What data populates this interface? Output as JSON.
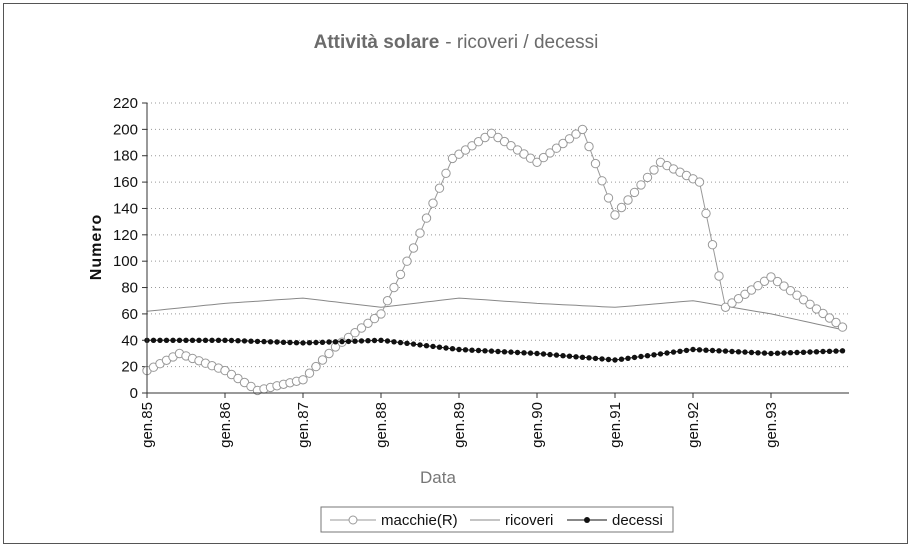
{
  "chart_data": {
    "type": "line",
    "title": "Attività solare",
    "subtitle": "- ricoveri / decessi",
    "xlabel": "Data",
    "ylabel": "Numero",
    "ylim": [
      0,
      220
    ],
    "yticks": [
      0,
      20,
      40,
      60,
      80,
      100,
      120,
      140,
      160,
      180,
      200,
      220
    ],
    "categories": [
      "gen.85",
      "gen.86",
      "gen.87",
      "gen.88",
      "gen.89",
      "gen.90",
      "gen.91",
      "gen.92",
      "gen.93"
    ],
    "grid": "horizontal dotted",
    "legend_position": "bottom",
    "series": [
      {
        "name": "macchie(R)",
        "color": "#999999",
        "marker": "open-circle",
        "key_values": [
          {
            "date": "1985-01",
            "value": 17
          },
          {
            "date": "1985-06",
            "value": 30
          },
          {
            "date": "1986-01",
            "value": 17
          },
          {
            "date": "1986-06",
            "value": 2
          },
          {
            "date": "1987-01",
            "value": 10
          },
          {
            "date": "1987-06",
            "value": 35
          },
          {
            "date": "1988-01",
            "value": 60
          },
          {
            "date": "1988-06",
            "value": 110
          },
          {
            "date": "1988-12",
            "value": 178
          },
          {
            "date": "1989-06",
            "value": 197
          },
          {
            "date": "1990-01",
            "value": 175
          },
          {
            "date": "1990-08",
            "value": 200
          },
          {
            "date": "1991-01",
            "value": 135
          },
          {
            "date": "1991-08",
            "value": 175
          },
          {
            "date": "1992-02",
            "value": 160
          },
          {
            "date": "1992-06",
            "value": 65
          },
          {
            "date": "1993-01",
            "value": 88
          },
          {
            "date": "1993-12",
            "value": 50
          }
        ]
      },
      {
        "name": "ricoveri",
        "color": "#888888",
        "marker": "none",
        "key_values": [
          {
            "date": "1985-01",
            "value": 62
          },
          {
            "date": "1986-01",
            "value": 68
          },
          {
            "date": "1987-01",
            "value": 72
          },
          {
            "date": "1988-01",
            "value": 65
          },
          {
            "date": "1989-01",
            "value": 72
          },
          {
            "date": "1990-01",
            "value": 68
          },
          {
            "date": "1991-01",
            "value": 65
          },
          {
            "date": "1992-01",
            "value": 70
          },
          {
            "date": "1993-01",
            "value": 60
          },
          {
            "date": "1993-12",
            "value": 48
          }
        ]
      },
      {
        "name": "decessi",
        "color": "#111111",
        "marker": "filled-circle",
        "key_values": [
          {
            "date": "1985-01",
            "value": 40
          },
          {
            "date": "1986-01",
            "value": 40
          },
          {
            "date": "1987-01",
            "value": 38
          },
          {
            "date": "1988-01",
            "value": 40
          },
          {
            "date": "1989-01",
            "value": 33
          },
          {
            "date": "1990-01",
            "value": 30
          },
          {
            "date": "1991-01",
            "value": 25
          },
          {
            "date": "1992-01",
            "value": 33
          },
          {
            "date": "1993-01",
            "value": 30
          },
          {
            "date": "1993-12",
            "value": 32
          }
        ]
      }
    ]
  }
}
